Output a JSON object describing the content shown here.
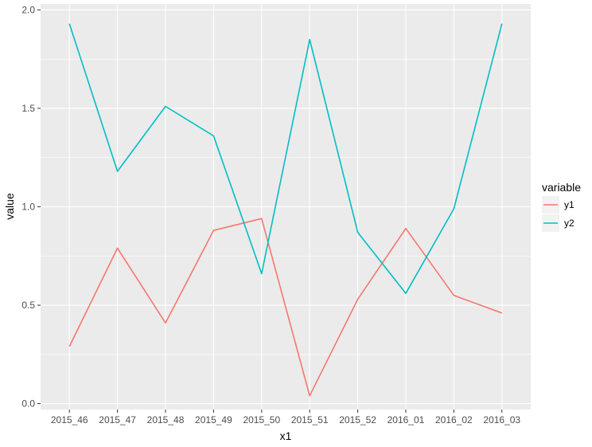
{
  "chart_data": {
    "type": "line",
    "xlabel": "x1",
    "ylabel": "value",
    "categories": [
      "2015_46",
      "2015_47",
      "2015_48",
      "2015_49",
      "2015_50",
      "2015_51",
      "2015_52",
      "2016_01",
      "2016_02",
      "2016_03"
    ],
    "ylim": [
      -0.03,
      2.03
    ],
    "y_ticks": [
      0.0,
      0.5,
      1.0,
      1.5,
      2.0
    ],
    "y_tick_labels": [
      "0.0",
      "0.5",
      "1.0",
      "1.5",
      "2.0"
    ],
    "grid": true,
    "legend": {
      "title": "variable",
      "placement": "right"
    },
    "series": [
      {
        "name": "y1",
        "color": "#F8766D",
        "values": [
          0.29,
          0.79,
          0.41,
          0.88,
          0.94,
          0.04,
          0.53,
          0.89,
          0.55,
          0.46
        ]
      },
      {
        "name": "y2",
        "color": "#00BFC4",
        "values": [
          1.93,
          1.18,
          1.51,
          1.36,
          0.66,
          1.85,
          0.87,
          0.56,
          0.99,
          1.93
        ]
      }
    ]
  }
}
